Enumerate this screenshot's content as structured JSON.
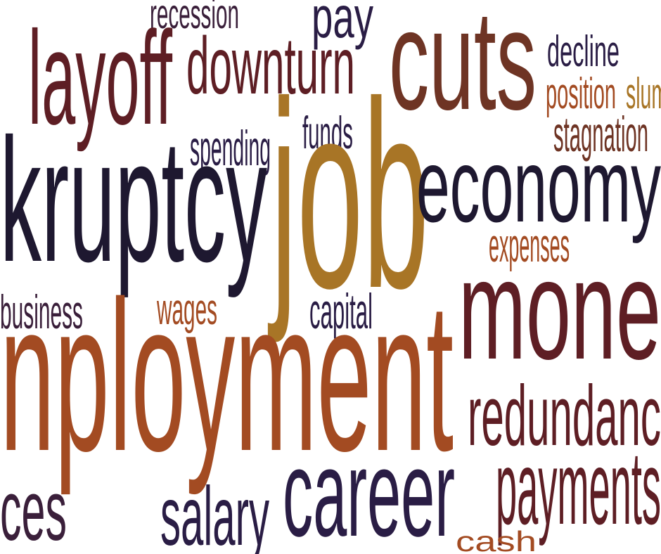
{
  "palette": {
    "navy": "#2a1d45",
    "maroon": "#5e1e24",
    "rust": "#a34b22",
    "ochre": "#a87526",
    "brown": "#6e3424"
  },
  "words": [
    {
      "id": "recession",
      "text": "recession",
      "color": "#3a1f3a"
    },
    {
      "id": "pay",
      "text": "pay",
      "color": "#2a1d45"
    },
    {
      "id": "cuts",
      "text": "cuts",
      "color": "#6e3424"
    },
    {
      "id": "decline",
      "text": "decline",
      "color": "#2a1d45"
    },
    {
      "id": "position",
      "text": "position",
      "color": "#a34b22"
    },
    {
      "id": "slump",
      "text": "slum",
      "color": "#a87526"
    },
    {
      "id": "layoff",
      "text": "layoff",
      "color": "#5e1e24"
    },
    {
      "id": "downturn",
      "text": "downturn",
      "color": "#5e1e24"
    },
    {
      "id": "stagnation",
      "text": "stagnation",
      "color": "#6e3424"
    },
    {
      "id": "spending",
      "text": "spending",
      "color": "#2a1d45"
    },
    {
      "id": "funds",
      "text": "funds",
      "color": "#2a1d45"
    },
    {
      "id": "bankruptcy",
      "text": "kruptcy",
      "color": "#1e1830"
    },
    {
      "id": "job",
      "text": "job",
      "color": "#a87526"
    },
    {
      "id": "economy",
      "text": "economy",
      "color": "#1e1830"
    },
    {
      "id": "expenses",
      "text": "expenses",
      "color": "#a34b22"
    },
    {
      "id": "money",
      "text": "mone",
      "color": "#5e1e24"
    },
    {
      "id": "business",
      "text": "business",
      "color": "#3a1f3a"
    },
    {
      "id": "wages",
      "text": "wages",
      "color": "#a34b22"
    },
    {
      "id": "capital",
      "text": "capital",
      "color": "#2a1d45"
    },
    {
      "id": "unemployment",
      "text": "nployment",
      "color": "#a34b22"
    },
    {
      "id": "redundancy",
      "text": "redundanc",
      "color": "#5e1e24"
    },
    {
      "id": "career",
      "text": "career",
      "color": "#2a1d45"
    },
    {
      "id": "payments",
      "text": "payments",
      "color": "#5e1e24"
    },
    {
      "id": "prices",
      "text": "ces",
      "color": "#3a1f3a"
    },
    {
      "id": "salary",
      "text": "salary",
      "color": "#2a1d45"
    },
    {
      "id": "cash",
      "text": "cash",
      "color": "#a34b22"
    }
  ]
}
